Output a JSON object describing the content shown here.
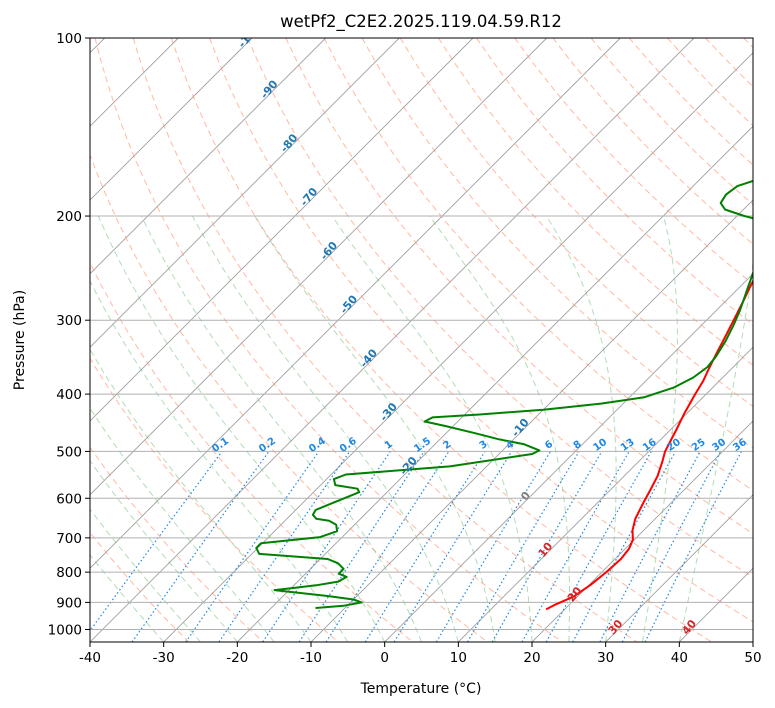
{
  "chart_data": {
    "type": "line",
    "title": "wetPf2_C2E2.2025.119.04.59.R12",
    "xlabel": "Temperature (°C)",
    "ylabel": "Pressure (hPa)",
    "xlim": [
      -40,
      50
    ],
    "ylim": [
      1050,
      100
    ],
    "y_scale": "log",
    "grid": true,
    "x_ticks": [
      -40,
      -30,
      -20,
      -10,
      0,
      10,
      20,
      30,
      40,
      50
    ],
    "y_ticks": [
      100,
      200,
      300,
      400,
      500,
      600,
      700,
      800,
      900,
      1000
    ],
    "colors": {
      "temperature": "#ff0000",
      "dewpoint": "#008000",
      "dry_adiabat": "#ff8a65",
      "moist_adiabat": "#66bb6a",
      "mixing_ratio": "#1e88e5",
      "isotherm": "#a0a0a0",
      "label_blue": "#1f77b4",
      "label_red": "#d62728"
    },
    "isotherm_labels": [
      "-100",
      "-90",
      "-80",
      "-70",
      "-60",
      "-50",
      "-40",
      "-30",
      "-20",
      "-10",
      "0",
      "10",
      "20",
      "30",
      "40"
    ],
    "mixing_ratio_labels": [
      "0.1",
      "0.2",
      "0.4",
      "0.6",
      "1",
      "1.5",
      "2",
      "3",
      "4",
      "6",
      "8",
      "10",
      "13",
      "16",
      "20",
      "25",
      "30",
      "36"
    ],
    "series": [
      {
        "key": "temperature",
        "points": [
          [
            17.5,
            925
          ],
          [
            18,
            910
          ],
          [
            19.5,
            880
          ],
          [
            20.2,
            840
          ],
          [
            20.6,
            800
          ],
          [
            20.8,
            760
          ],
          [
            20.5,
            730
          ],
          [
            19.8,
            705
          ],
          [
            18.5,
            680
          ],
          [
            17.3,
            650
          ],
          [
            16.2,
            610
          ],
          [
            15.4,
            580
          ],
          [
            14.5,
            550
          ],
          [
            13.2,
            520
          ],
          [
            12.2,
            500
          ],
          [
            11.5,
            480
          ],
          [
            10.8,
            460
          ],
          [
            9.6,
            430
          ],
          [
            8.5,
            400
          ],
          [
            7.8,
            380
          ],
          [
            6.8,
            360
          ],
          [
            5.8,
            340
          ],
          [
            4.8,
            320
          ],
          [
            3.7,
            300
          ],
          [
            2.5,
            280
          ],
          [
            1.5,
            265
          ],
          [
            0.5,
            250
          ],
          [
            -0.3,
            235
          ],
          [
            -0.8,
            222
          ],
          [
            -0.7,
            213
          ],
          [
            0.4,
            205
          ],
          [
            2.2,
            198
          ],
          [
            4.5,
            192
          ],
          [
            5.9,
            185
          ],
          [
            6.5,
            175
          ],
          [
            7.1,
            165
          ],
          [
            8.0,
            155
          ],
          [
            9.5,
            145
          ],
          [
            10.2,
            137
          ],
          [
            10.5,
            128
          ],
          [
            10.2,
            120
          ],
          [
            10.4,
            112
          ],
          [
            11.2,
            106
          ],
          [
            12.2,
            100
          ]
        ]
      },
      {
        "key": "dewpoint",
        "points": [
          [
            -14,
            920
          ],
          [
            -10.5,
            912
          ],
          [
            -8.5,
            900
          ],
          [
            -10,
            890
          ],
          [
            -14,
            878
          ],
          [
            -22,
            858
          ],
          [
            -20,
            852
          ],
          [
            -17,
            842
          ],
          [
            -14.5,
            830
          ],
          [
            -14,
            815
          ],
          [
            -15.5,
            805
          ],
          [
            -15.5,
            790
          ],
          [
            -17,
            773
          ],
          [
            -19,
            760
          ],
          [
            -29,
            745
          ],
          [
            -30.2,
            728
          ],
          [
            -30.2,
            715
          ],
          [
            -23,
            698
          ],
          [
            -21.5,
            682
          ],
          [
            -22.5,
            665
          ],
          [
            -24,
            655
          ],
          [
            -26,
            650
          ],
          [
            -27,
            640
          ],
          [
            -27.3,
            628
          ],
          [
            -26,
            612
          ],
          [
            -25,
            600
          ],
          [
            -23.8,
            586
          ],
          [
            -24.5,
            578
          ],
          [
            -28,
            570
          ],
          [
            -29,
            557
          ],
          [
            -28,
            547
          ],
          [
            -15,
            530
          ],
          [
            -5.5,
            505
          ],
          [
            -5,
            498
          ],
          [
            -8,
            486
          ],
          [
            -12,
            477
          ],
          [
            -16,
            466
          ],
          [
            -21,
            453
          ],
          [
            -24.5,
            445
          ],
          [
            -24,
            438
          ],
          [
            -18,
            433
          ],
          [
            -10,
            425
          ],
          [
            -3,
            415
          ],
          [
            2,
            405
          ],
          [
            4.7,
            390
          ],
          [
            6,
            375
          ],
          [
            6.5,
            360
          ],
          [
            6.2,
            345
          ],
          [
            5.4,
            325
          ],
          [
            4.3,
            305
          ],
          [
            3.3,
            290
          ],
          [
            2.1,
            275
          ],
          [
            1,
            262
          ],
          [
            -0.5,
            245
          ],
          [
            -1.8,
            228
          ],
          [
            -2.5,
            215
          ],
          [
            -4,
            206
          ],
          [
            -9,
            200
          ],
          [
            -12.5,
            195
          ],
          [
            -14,
            190
          ],
          [
            -14.4,
            184
          ],
          [
            -14,
            178
          ],
          [
            -12,
            173
          ],
          [
            -9.5,
            168
          ],
          [
            -8.5,
            160
          ],
          [
            -9,
            153
          ],
          [
            -10,
            147
          ],
          [
            -9.8,
            140
          ],
          [
            -8.5,
            133
          ],
          [
            -6.2,
            125
          ],
          [
            -4.6,
            118
          ],
          [
            -3.2,
            113
          ],
          [
            -1.5,
            108
          ],
          [
            0.5,
            100
          ]
        ]
      }
    ]
  }
}
